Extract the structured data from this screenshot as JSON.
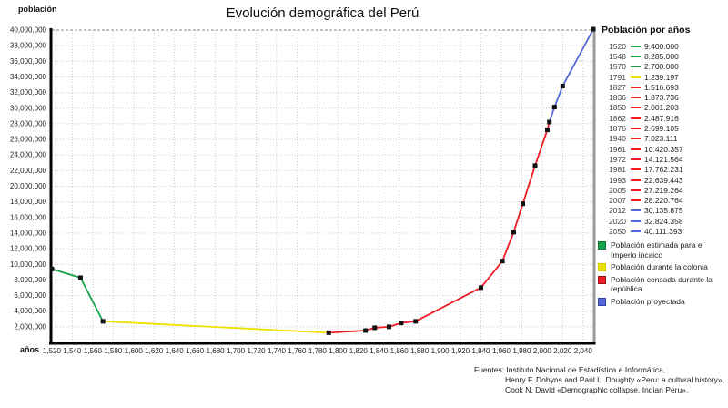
{
  "page": {
    "title": "Evolución demográfica del Perú"
  },
  "chart_data": {
    "type": "line",
    "title": "Evolución demográfica del Perú",
    "xlabel": "años",
    "ylabel": "población",
    "xlim": [
      1520,
      2050
    ],
    "ylim": [
      0,
      40000000
    ],
    "grid": true,
    "legend_position": "right-bottom",
    "x_ticks": {
      "values": [
        1520,
        1540,
        1560,
        1580,
        1600,
        1620,
        1640,
        1660,
        1680,
        1700,
        1720,
        1740,
        1760,
        1780,
        1800,
        1820,
        1840,
        1860,
        1880,
        1900,
        1920,
        1940,
        1960,
        1980,
        2000,
        2020,
        2040
      ],
      "labels": [
        "1,520",
        "1,540",
        "1,560",
        "1,580",
        "1,600",
        "1,620",
        "1,640",
        "1,660",
        "1,680",
        "1,700",
        "1,720",
        "1,740",
        "1,760",
        "1,780",
        "1,800",
        "1,820",
        "1,840",
        "1,860",
        "1,880",
        "1,900",
        "1,920",
        "1,940",
        "1,960",
        "1,980",
        "2,000",
        "2,020",
        "2,040"
      ]
    },
    "y_ticks": {
      "values": [
        2000000,
        4000000,
        6000000,
        8000000,
        10000000,
        12000000,
        14000000,
        16000000,
        18000000,
        20000000,
        22000000,
        24000000,
        26000000,
        28000000,
        30000000,
        32000000,
        34000000,
        36000000,
        38000000,
        40000000
      ],
      "labels": [
        "2,000,000",
        "4,000,000",
        "6,000,000",
        "8,000,000",
        "10,000,000",
        "12,000,000",
        "14,000,000",
        "16,000,000",
        "18,000,000",
        "20,000,000",
        "22,000,000",
        "24,000,000",
        "26,000,000",
        "28,000,000",
        "30,000,000",
        "32,000,000",
        "34,000,000",
        "36,000,000",
        "38,000,000",
        "40,000,000"
      ]
    },
    "series": [
      {
        "name": "Población estimada para el Imperio incaico",
        "era": "incaico",
        "points": [
          [
            1520,
            9400000
          ],
          [
            1548,
            8285000
          ],
          [
            1570,
            2700000
          ]
        ]
      },
      {
        "name": "Población durante la colonia",
        "era": "colonia",
        "points": [
          [
            1570,
            2700000
          ],
          [
            1791,
            1239197
          ]
        ]
      },
      {
        "name": "Población censada durante la república",
        "era": "republica",
        "points": [
          [
            1791,
            1239197
          ],
          [
            1827,
            1516693
          ],
          [
            1836,
            1873736
          ],
          [
            1850,
            2001203
          ],
          [
            1862,
            2487916
          ],
          [
            1876,
            2699105
          ],
          [
            1940,
            7023111
          ],
          [
            1961,
            10420357
          ],
          [
            1972,
            14121564
          ],
          [
            1981,
            17762231
          ],
          [
            1993,
            22639443
          ],
          [
            2005,
            27219264
          ],
          [
            2007,
            28220764
          ]
        ]
      },
      {
        "name": "Población proyectada",
        "era": "proyectada",
        "points": [
          [
            2007,
            28220764
          ],
          [
            2012,
            30135875
          ],
          [
            2020,
            32824358
          ],
          [
            2050,
            40111393
          ]
        ]
      }
    ]
  },
  "colors": {
    "incaico": "#18A34B",
    "colonia": "#F0E000",
    "republica": "#ED1C24",
    "proyectada": "#5668D6",
    "incaico_border": "#0A7A36",
    "colonia_border": "#D6C900",
    "republica_border": "#99101C",
    "proyectada_border": "#2C3FAA",
    "axis": "#000000",
    "grid": "#C9C9C9",
    "grid_top": "#8A8A8A",
    "right_border": "#9A9A9A",
    "marker": "#121212"
  },
  "table": {
    "title": "Población por años",
    "rows": [
      {
        "year": "1520",
        "value": "9.400.000",
        "era": "incaico"
      },
      {
        "year": "1548",
        "value": "8.285.000",
        "era": "incaico"
      },
      {
        "year": "1570",
        "value": "2.700.000",
        "era": "incaico"
      },
      {
        "year": "1791",
        "value": "1.239.197",
        "era": "colonia"
      },
      {
        "year": "1827",
        "value": "1.516.693",
        "era": "republica"
      },
      {
        "year": "1836",
        "value": "1.873.736",
        "era": "republica"
      },
      {
        "year": "1850",
        "value": "2.001.203",
        "era": "republica"
      },
      {
        "year": "1862",
        "value": "2.487.916",
        "era": "republica"
      },
      {
        "year": "1876",
        "value": "2.699.105",
        "era": "republica"
      },
      {
        "year": "1940",
        "value": "7.023.111",
        "era": "republica"
      },
      {
        "year": "1961",
        "value": "10.420.357",
        "era": "republica"
      },
      {
        "year": "1972",
        "value": "14.121.564",
        "era": "republica"
      },
      {
        "year": "1981",
        "value": "17.762.231",
        "era": "republica"
      },
      {
        "year": "1993",
        "value": "22.639.443",
        "era": "republica"
      },
      {
        "year": "2005",
        "value": "27.219.264",
        "era": "republica"
      },
      {
        "year": "2007",
        "value": "28.220.764",
        "era": "republica"
      },
      {
        "year": "2012",
        "value": "30.135.875",
        "era": "proyectada"
      },
      {
        "year": "2020",
        "value": "32.824.358",
        "era": "proyectada"
      },
      {
        "year": "2050",
        "value": "40.111.393",
        "era": "proyectada"
      }
    ]
  },
  "legend": {
    "items": [
      {
        "label": "Población estimada para el Imperio incaico",
        "era": "incaico"
      },
      {
        "label": "Población durante la colonia",
        "era": "colonia"
      },
      {
        "label": "Población censada durante la república",
        "era": "republica"
      },
      {
        "label": "Población proyectada",
        "era": "proyectada"
      }
    ]
  },
  "footer": {
    "lines": [
      "Fuentes: Instituto Nacional de Estadística e Informática,",
      "Henry F. Dobyns and Paul L. Doughty «Peru: a cultural history»,",
      "Cook N. David «Demographic collapse. Indian Peru»."
    ]
  }
}
